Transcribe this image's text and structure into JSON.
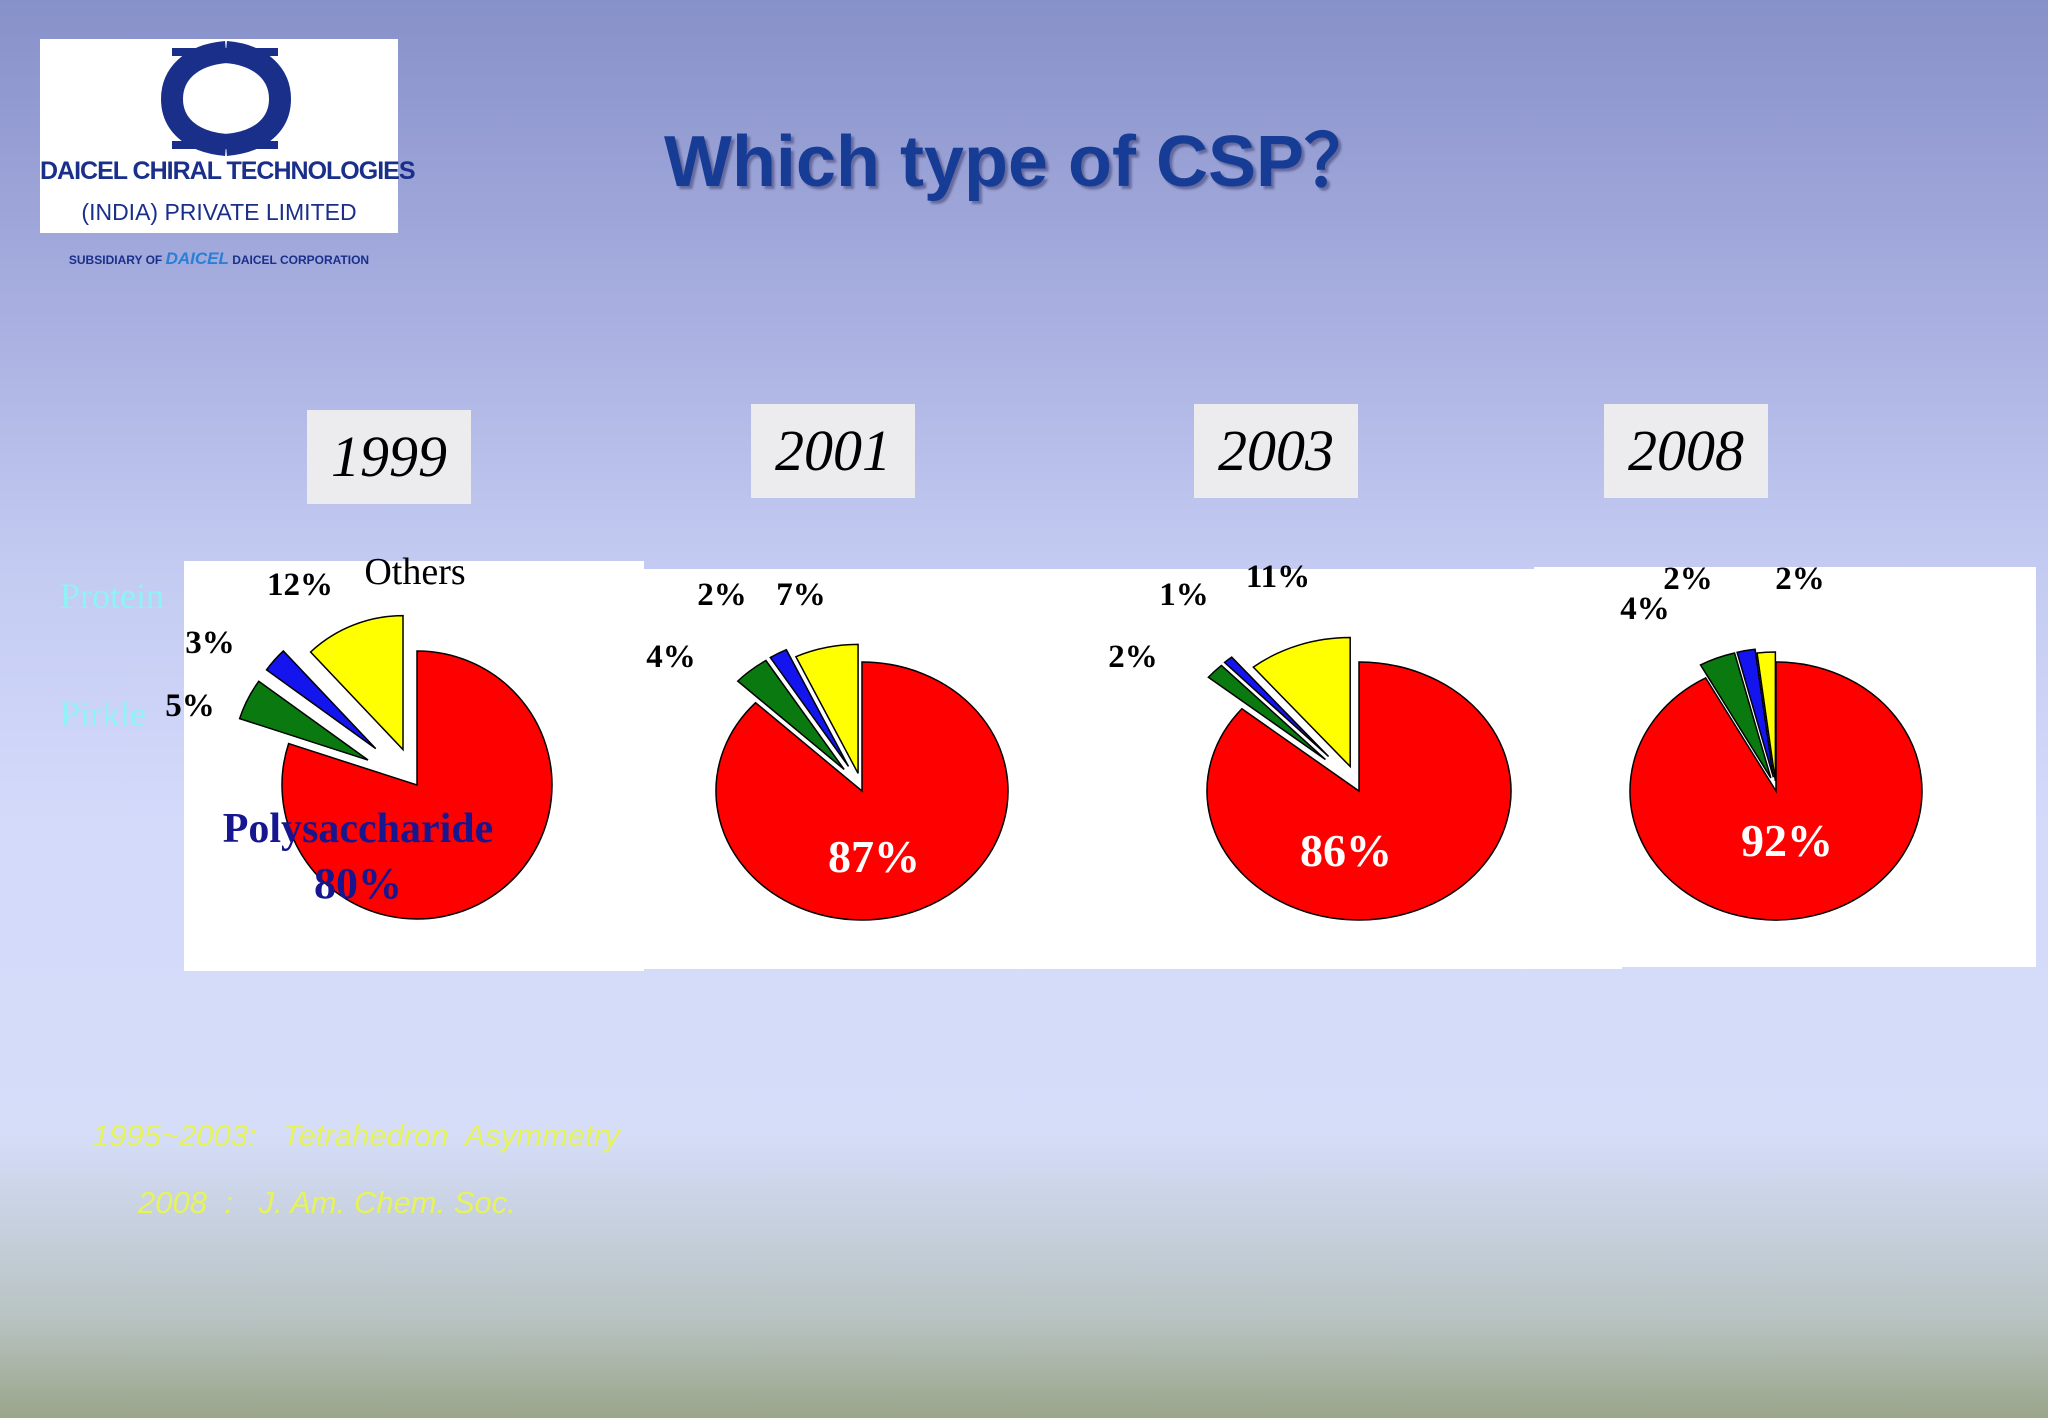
{
  "logo": {
    "line1": "DAICEL CHIRAL TECHNOLOGIES",
    "line2": "(INDIA) PRIVATE LIMITED",
    "line3_prefix": "SUBSIDIARY OF ",
    "line3_brand": "DAICEL",
    "line3_suffix": " DAICEL CORPORATION"
  },
  "title": "Which type of CSP？",
  "side_labels": {
    "protein": "Protein",
    "pirkle": "Pirkle"
  },
  "references": {
    "line1": "1995~2003:   Tetrahedron  Asymmetry",
    "line2": "2008  :   J. Am. Chem. Soc."
  },
  "colors": {
    "polysaccharide": "#ff0000",
    "pirkle": "#0a7a10",
    "protein": "#1414ee",
    "others": "#ffff00"
  },
  "chart_data": [
    {
      "type": "pie",
      "title": "1999",
      "slices": [
        {
          "category": "polysaccharide",
          "value": 80,
          "label": "Polysaccharide",
          "value_label": "80%"
        },
        {
          "category": "pirkle",
          "value": 5,
          "label": "",
          "value_label": "5%"
        },
        {
          "category": "protein",
          "value": 3,
          "label": "",
          "value_label": "3%"
        },
        {
          "category": "others",
          "value": 12,
          "label": "Others",
          "value_label": "12%"
        }
      ]
    },
    {
      "type": "pie",
      "title": "2001",
      "slices": [
        {
          "category": "polysaccharide",
          "value": 87,
          "value_label": "87%"
        },
        {
          "category": "pirkle",
          "value": 4,
          "value_label": "4%"
        },
        {
          "category": "protein",
          "value": 2,
          "value_label": "2%"
        },
        {
          "category": "others",
          "value": 7,
          "value_label": "7%"
        }
      ]
    },
    {
      "type": "pie",
      "title": "2003",
      "slices": [
        {
          "category": "polysaccharide",
          "value": 86,
          "value_label": "86%"
        },
        {
          "category": "pirkle",
          "value": 2,
          "value_label": "2%"
        },
        {
          "category": "protein",
          "value": 1,
          "value_label": "1%"
        },
        {
          "category": "others",
          "value": 11,
          "value_label": "11%"
        }
      ]
    },
    {
      "type": "pie",
      "title": "2008",
      "slices": [
        {
          "category": "polysaccharide",
          "value": 92,
          "value_label": "92%"
        },
        {
          "category": "pirkle",
          "value": 4,
          "value_label": "4%"
        },
        {
          "category": "protein",
          "value": 2,
          "value_label": "2%"
        },
        {
          "category": "others",
          "value": 2,
          "value_label": "2%"
        }
      ]
    }
  ]
}
